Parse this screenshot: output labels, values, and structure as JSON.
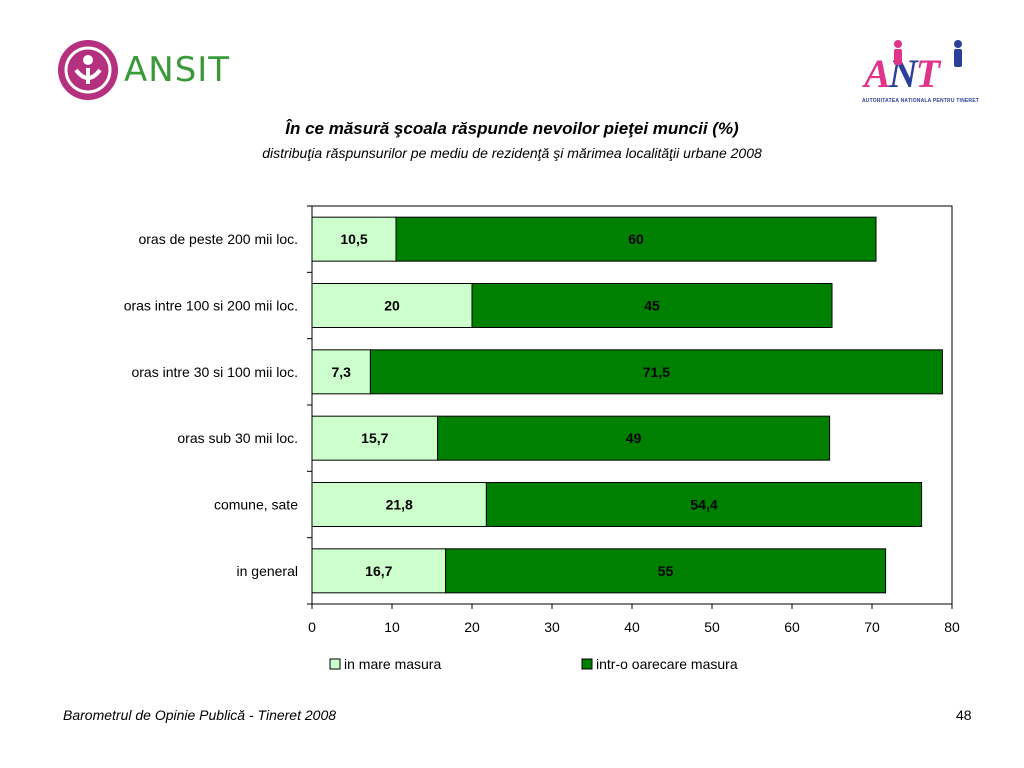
{
  "header": {
    "left_logo": {
      "name": "ansit-logo",
      "text": "ANSIT",
      "color": "#b5307f",
      "text_color": "#3a9a3a"
    },
    "right_logo": {
      "name": "ant-logo",
      "text_pink": "A",
      "text_blue": "N",
      "text_pink2": "T",
      "tagline": "AUTORITATEA NATIONALA PENTRU TINERET"
    }
  },
  "slide": {
    "footer_text": "Barometrul de Opinie Publică - Tineret 2008",
    "page_number": "48"
  },
  "chart_data": {
    "type": "bar",
    "orientation": "horizontal",
    "stacked": true,
    "title": "În ce măsură şcoala răspunde nevoilor pieţei muncii (%)",
    "subtitle": "distribuţia răspunsurilor pe mediu de rezidenţă şi mărimea localităţii urbane 2008",
    "categories": [
      "oras de peste 200 mii loc.",
      "oras intre 100 si 200 mii loc.",
      "oras intre 30 si 100 mii loc.",
      "oras sub 30 mii loc.",
      "comune, sate",
      "in general"
    ],
    "series": [
      {
        "name": "in mare masura",
        "color": "#ccffcc",
        "values": [
          10.5,
          20,
          7.3,
          15.7,
          21.8,
          16.7
        ],
        "labels": [
          "10,5",
          "20",
          "7,3",
          "15,7",
          "21,8",
          "16,7"
        ]
      },
      {
        "name": "intr-o oarecare masura",
        "color": "#008000",
        "values": [
          60,
          45,
          71.5,
          49,
          54.4,
          55
        ],
        "labels": [
          "60",
          "45",
          "71,5",
          "49",
          "54,4",
          "55"
        ]
      }
    ],
    "xlim": [
      0,
      80
    ],
    "xticks": [
      "0",
      "10",
      "20",
      "30",
      "40",
      "50",
      "60",
      "70",
      "80"
    ],
    "grid": false,
    "legend_position": "bottom"
  }
}
